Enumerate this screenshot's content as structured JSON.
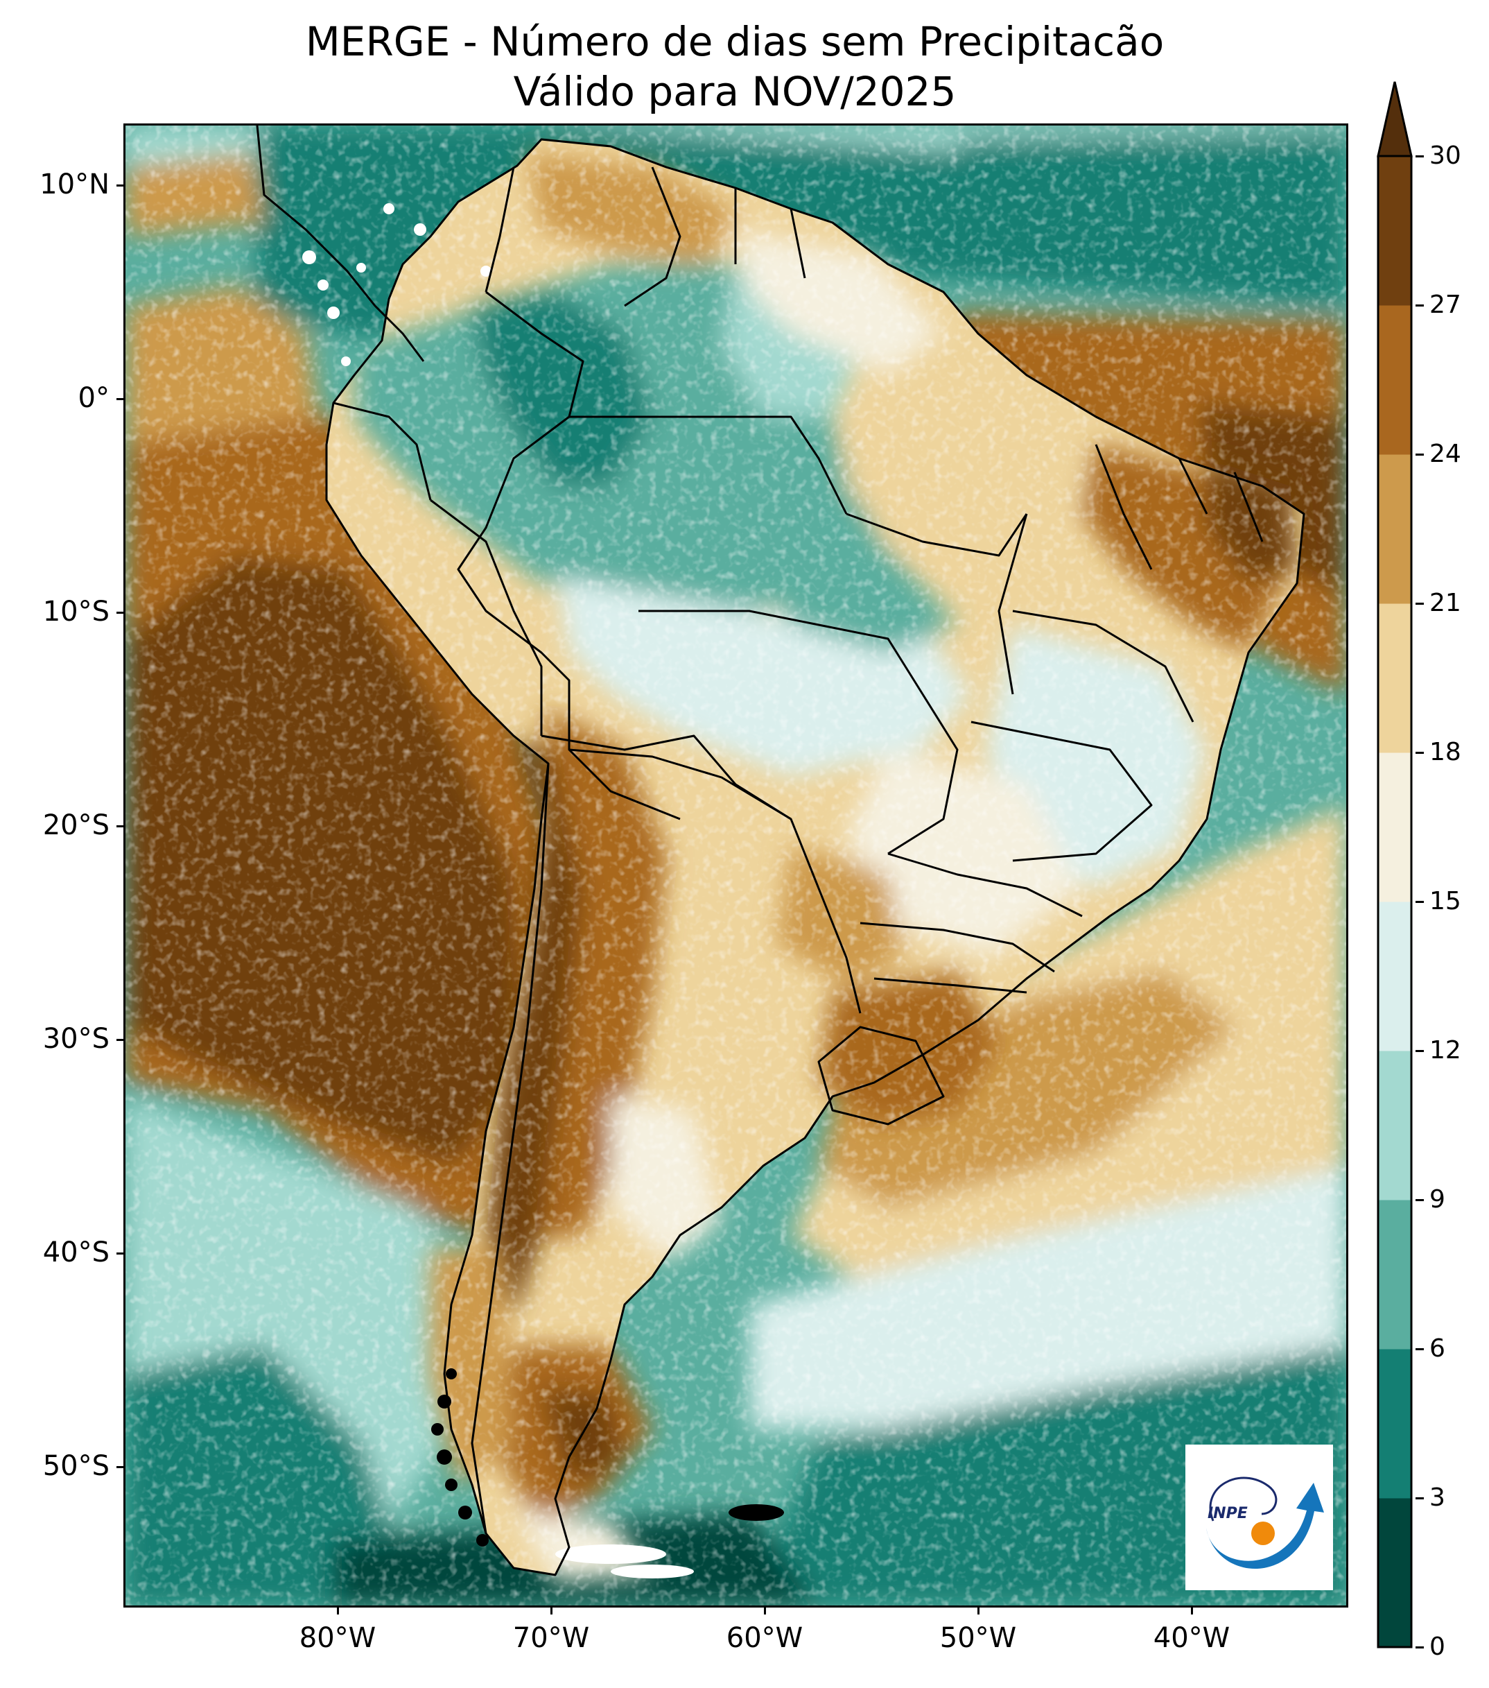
{
  "title": {
    "line1": "MERGE - Número de dias sem Precipitacão",
    "line2": "Válido para NOV/2025"
  },
  "latitude_labels": [
    "10°N",
    "0°",
    "10°S",
    "20°S",
    "30°S",
    "40°S",
    "50°S"
  ],
  "longitude_labels": [
    "80°W",
    "70°W",
    "60°W",
    "50°W",
    "40°W"
  ],
  "colorbar": {
    "ticks": [
      "0",
      "3",
      "6",
      "9",
      "12",
      "15",
      "18",
      "21",
      "24",
      "27",
      "30"
    ],
    "colors": [
      "#01463c",
      "#147f73",
      "#5aae9f",
      "#a3d9d0",
      "#dbefed",
      "#f5f0df",
      "#eed49c",
      "#cd9a4c",
      "#a9671f",
      "#704010"
    ],
    "extend_color": "#542f0c"
  },
  "logo": {
    "text": "INPE"
  },
  "colors": {
    "border": "#000000",
    "ocean_base": "#5aae9f",
    "land_base": "#eed49c"
  }
}
